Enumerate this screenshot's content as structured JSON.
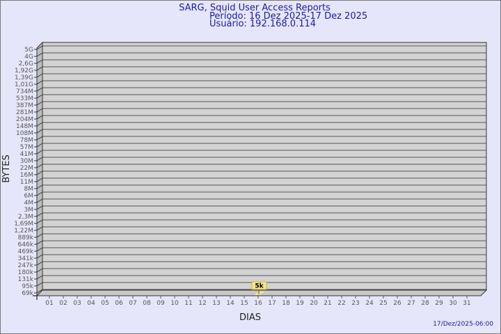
{
  "header": {
    "title": "SARG, Squid User Access Reports",
    "period": "Período: 16 Dez 2025-17 Dez 2025",
    "user": "Usuário: 192.168.0.114"
  },
  "footer": {
    "timestamp": "17/Dez/2025-06:00"
  },
  "chart_data": {
    "type": "bar",
    "xlabel": "DIAS",
    "ylabel": "BYTES",
    "y_scale": "log",
    "y_tick_labels": [
      "5G",
      "4G",
      "2,6G",
      "1,92G",
      "1,39G",
      "1,01G",
      "734M",
      "533M",
      "387M",
      "281M",
      "204M",
      "148M",
      "108M",
      "78M",
      "57M",
      "41M",
      "30M",
      "22M",
      "16M",
      "11M",
      "8M",
      "6M",
      "4M",
      "3M",
      "2,3M",
      "1,69M",
      "1,22M",
      "889k",
      "646k",
      "469k",
      "341k",
      "247k",
      "180k",
      "131k",
      "95k",
      "69k"
    ],
    "categories": [
      "01",
      "02",
      "03",
      "04",
      "05",
      "06",
      "07",
      "08",
      "09",
      "10",
      "11",
      "12",
      "13",
      "14",
      "15",
      "16",
      "17",
      "18",
      "19",
      "20",
      "21",
      "22",
      "23",
      "24",
      "25",
      "26",
      "27",
      "28",
      "29",
      "30",
      "31"
    ],
    "values": [
      {
        "day": "16",
        "value": 5000,
        "label": "5k"
      }
    ],
    "grid": true,
    "colors": {
      "background": "#e6e6fa",
      "plot": "#d3d3d3",
      "bar": "#f5e58a",
      "title": "#1a1aa6"
    }
  }
}
